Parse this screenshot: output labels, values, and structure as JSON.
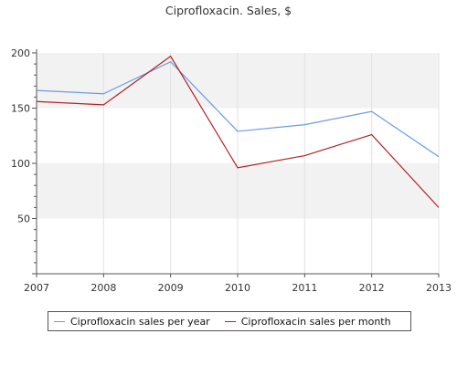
{
  "chart_data": {
    "type": "line",
    "title": "Ciprofloxacin. Sales, $",
    "xlabel": "",
    "ylabel": "",
    "x": [
      2007,
      2008,
      2009,
      2010,
      2011,
      2012,
      2013
    ],
    "x_tick_labels": [
      "2007",
      "2008",
      "2009",
      "2010",
      "2011",
      "2012",
      "2013"
    ],
    "y_tick_values": [
      50,
      100,
      150,
      200
    ],
    "y_tick_labels": [
      "50",
      "100",
      "150",
      "200"
    ],
    "ylim": [
      0,
      200
    ],
    "grid": "horizontal bands",
    "legend_position": "bottom",
    "series": [
      {
        "name": "Ciprofloxacin sales per year",
        "color": "#6a9ae0",
        "values": [
          166,
          163,
          192,
          129,
          135,
          147,
          106
        ]
      },
      {
        "name": "Ciprofloxacin sales per month",
        "color": "#b22222",
        "values": [
          156,
          153,
          197,
          96,
          107,
          126,
          60
        ]
      }
    ]
  },
  "colors": {
    "band": "#f2f2f2",
    "axis": "#555555",
    "gridline": "#e2e2e2"
  }
}
